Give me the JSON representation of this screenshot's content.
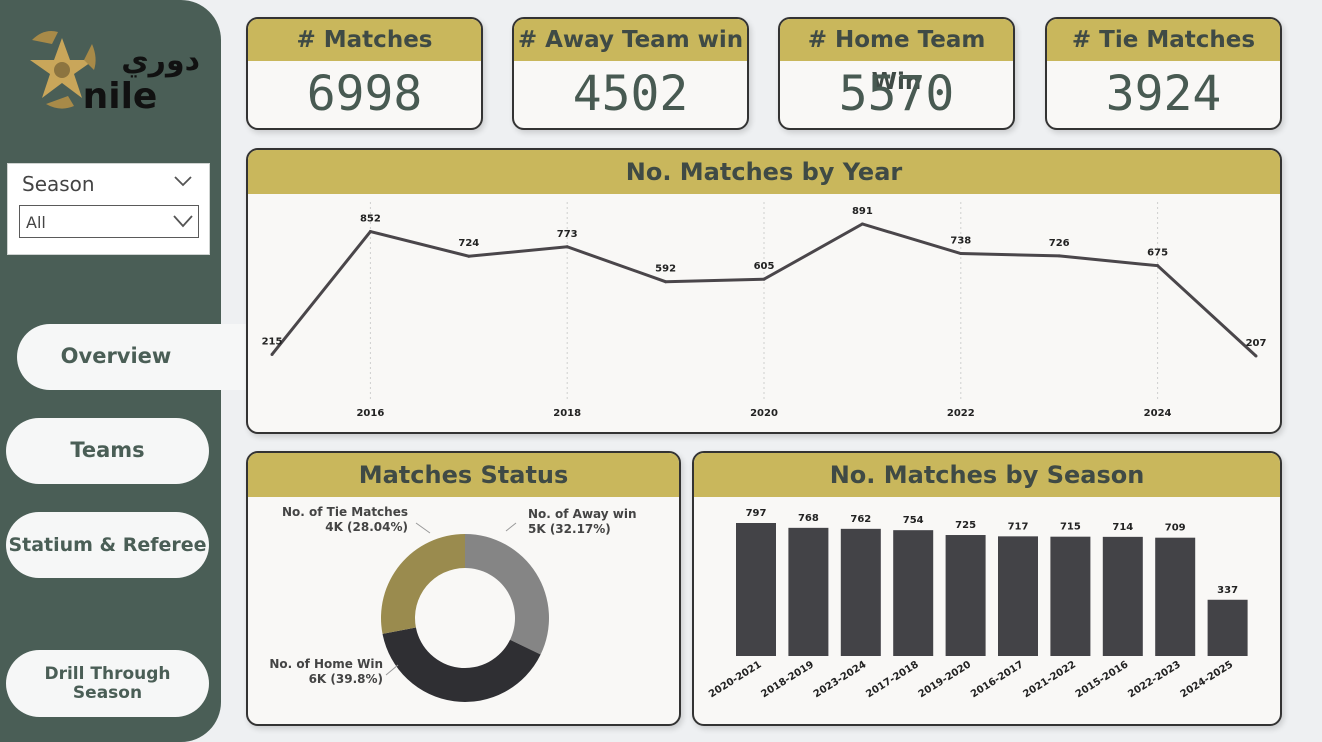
{
  "brand": {
    "logo_arabic_text": "دوري",
    "logo_latin_text": "nile"
  },
  "slicer": {
    "title": "Season",
    "selected_value": "All"
  },
  "nav": {
    "overview": "Overview",
    "teams": "Teams",
    "stadium_referee": "Statium & Referee",
    "drill_through_line1": "Drill Through",
    "drill_through_line2": "Season"
  },
  "kpis": {
    "matches": {
      "label": "# Matches",
      "value": "6998"
    },
    "away_win": {
      "label": "# Away Team win",
      "value": "4502"
    },
    "home_win": {
      "label": "# Home Team Win",
      "value": "5570"
    },
    "tie": {
      "label": "# Tie Matches",
      "value": "3924"
    }
  },
  "colors": {
    "sidebar": "#4a5e56",
    "header_gold": "#c9b75c",
    "kpi_value": "#485a52",
    "line": "#4a464a",
    "bar": "#434347",
    "donut_away": "#858585",
    "donut_home": "#2f2f33",
    "donut_tie": "#9a8b4e"
  },
  "chart_data": [
    {
      "type": "line",
      "title": "No. Matches by Year",
      "x": [
        2015,
        2016,
        2017,
        2018,
        2019,
        2020,
        2021,
        2022,
        2023,
        2024,
        2025
      ],
      "values": [
        215,
        852,
        724,
        773,
        592,
        605,
        891,
        738,
        726,
        675,
        207
      ],
      "x_tick_labels": [
        "2016",
        "2018",
        "2020",
        "2022",
        "2024"
      ],
      "grid": "vertical dotted"
    },
    {
      "type": "pie",
      "title": "Matches Status",
      "slices": [
        {
          "name": "No. of Away win",
          "value_label": "5K",
          "percent": 32.17,
          "percent_label": "(32.17%)"
        },
        {
          "name": "No. of Home Win",
          "value_label": "6K",
          "percent": 39.8,
          "percent_label": "(39.8%)"
        },
        {
          "name": "No. of Tie Matches",
          "value_label": "4K",
          "percent": 28.04,
          "percent_label": "(28.04%)"
        }
      ]
    },
    {
      "type": "bar",
      "title": "No. Matches by Season",
      "categories": [
        "2020-2021",
        "2018-2019",
        "2023-2024",
        "2017-2018",
        "2019-2020",
        "2016-2017",
        "2021-2022",
        "2015-2016",
        "2022-2023",
        "2024-2025"
      ],
      "values": [
        797,
        768,
        762,
        754,
        725,
        717,
        715,
        714,
        709,
        337
      ]
    }
  ]
}
